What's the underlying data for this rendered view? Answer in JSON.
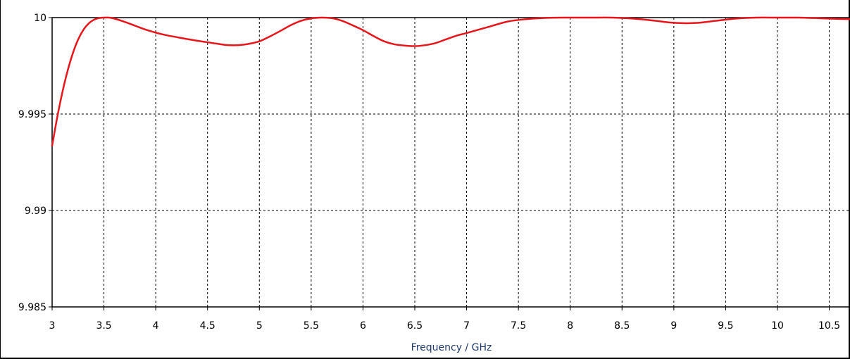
{
  "chart_data": {
    "type": "line",
    "title": "",
    "xlabel": "Frequency / GHz",
    "ylabel": "",
    "xlim": [
      3,
      10.7
    ],
    "ylim": [
      9.985,
      10
    ],
    "grid": true,
    "x_ticks": [
      "3",
      "3.5",
      "4",
      "4.5",
      "5",
      "5.5",
      "6",
      "6.5",
      "7",
      "7.5",
      "8",
      "8.5",
      "9",
      "9.5",
      "10",
      "10.5"
    ],
    "y_ticks": [
      "9.985",
      "9.99",
      "9.995",
      "10"
    ],
    "line_color": "#e8151a",
    "series": [
      {
        "x": [
          3.0,
          3.05,
          3.1,
          3.15,
          3.2,
          3.25,
          3.3,
          3.35,
          3.4,
          3.45,
          3.5,
          3.55,
          3.6,
          3.7,
          3.8,
          3.9,
          4.0,
          4.1,
          4.2,
          4.3,
          4.4,
          4.5,
          4.6,
          4.7,
          4.8,
          4.9,
          5.0,
          5.1,
          5.2,
          5.3,
          5.4,
          5.5,
          5.6,
          5.7,
          5.8,
          5.9,
          6.0,
          6.1,
          6.2,
          6.3,
          6.4,
          6.5,
          6.6,
          6.7,
          6.8,
          6.9,
          7.0,
          7.2,
          7.4,
          7.6,
          7.8,
          8.0,
          8.2,
          8.4,
          8.6,
          8.8,
          9.0,
          9.2,
          9.4,
          9.6,
          9.8,
          10.0,
          10.2,
          10.4,
          10.6,
          10.7
        ],
        "y": [
          9.99335,
          9.99485,
          9.99615,
          9.99725,
          9.99815,
          9.99885,
          9.99935,
          9.99968,
          9.99988,
          9.99997,
          10.0,
          10.0,
          9.99995,
          9.99978,
          9.99958,
          9.99938,
          9.99922,
          9.99909,
          9.99899,
          9.99889,
          9.9988,
          9.99872,
          9.99864,
          9.99857,
          9.99857,
          9.99864,
          9.99877,
          9.99902,
          9.9993,
          9.9996,
          9.99983,
          9.99996,
          10.0,
          9.99997,
          9.99983,
          9.9996,
          9.99935,
          9.99905,
          9.99878,
          9.99862,
          9.99855,
          9.99852,
          9.99857,
          9.99868,
          9.99887,
          9.99906,
          9.9992,
          9.9995,
          9.9998,
          9.99993,
          9.99999,
          10.0,
          10.0,
          10.0,
          9.99995,
          9.99985,
          9.99973,
          9.99972,
          9.99983,
          9.99995,
          10.0,
          10.0,
          10.0,
          9.99997,
          9.99993,
          9.99992
        ]
      }
    ]
  }
}
